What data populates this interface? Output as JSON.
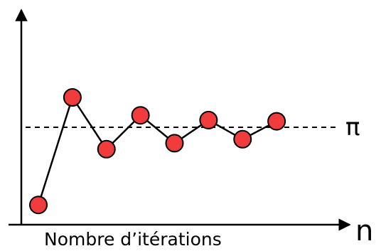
{
  "chart_data": {
    "type": "line",
    "title": "",
    "xlabel": "Nombre d’itérations",
    "xaxis_symbol": "n",
    "ylabel": "",
    "reference_line": {
      "label": "π",
      "value": 0,
      "style": "dashed"
    },
    "ylim": [
      -2.1,
      1.1
    ],
    "xlim": [
      1,
      9
    ],
    "grid": false,
    "legend": "none",
    "series": [
      {
        "color": "#f03c3c",
        "values": [
          {
            "x": 1,
            "y": -1.95
          },
          {
            "x": 2,
            "y": 0.75
          },
          {
            "x": 3,
            "y": -0.55
          },
          {
            "x": 4,
            "y": 0.3
          },
          {
            "x": 5,
            "y": -0.4
          },
          {
            "x": 6,
            "y": 0.18
          },
          {
            "x": 7,
            "y": -0.3
          },
          {
            "x": 8,
            "y": 0.15
          }
        ]
      }
    ]
  }
}
